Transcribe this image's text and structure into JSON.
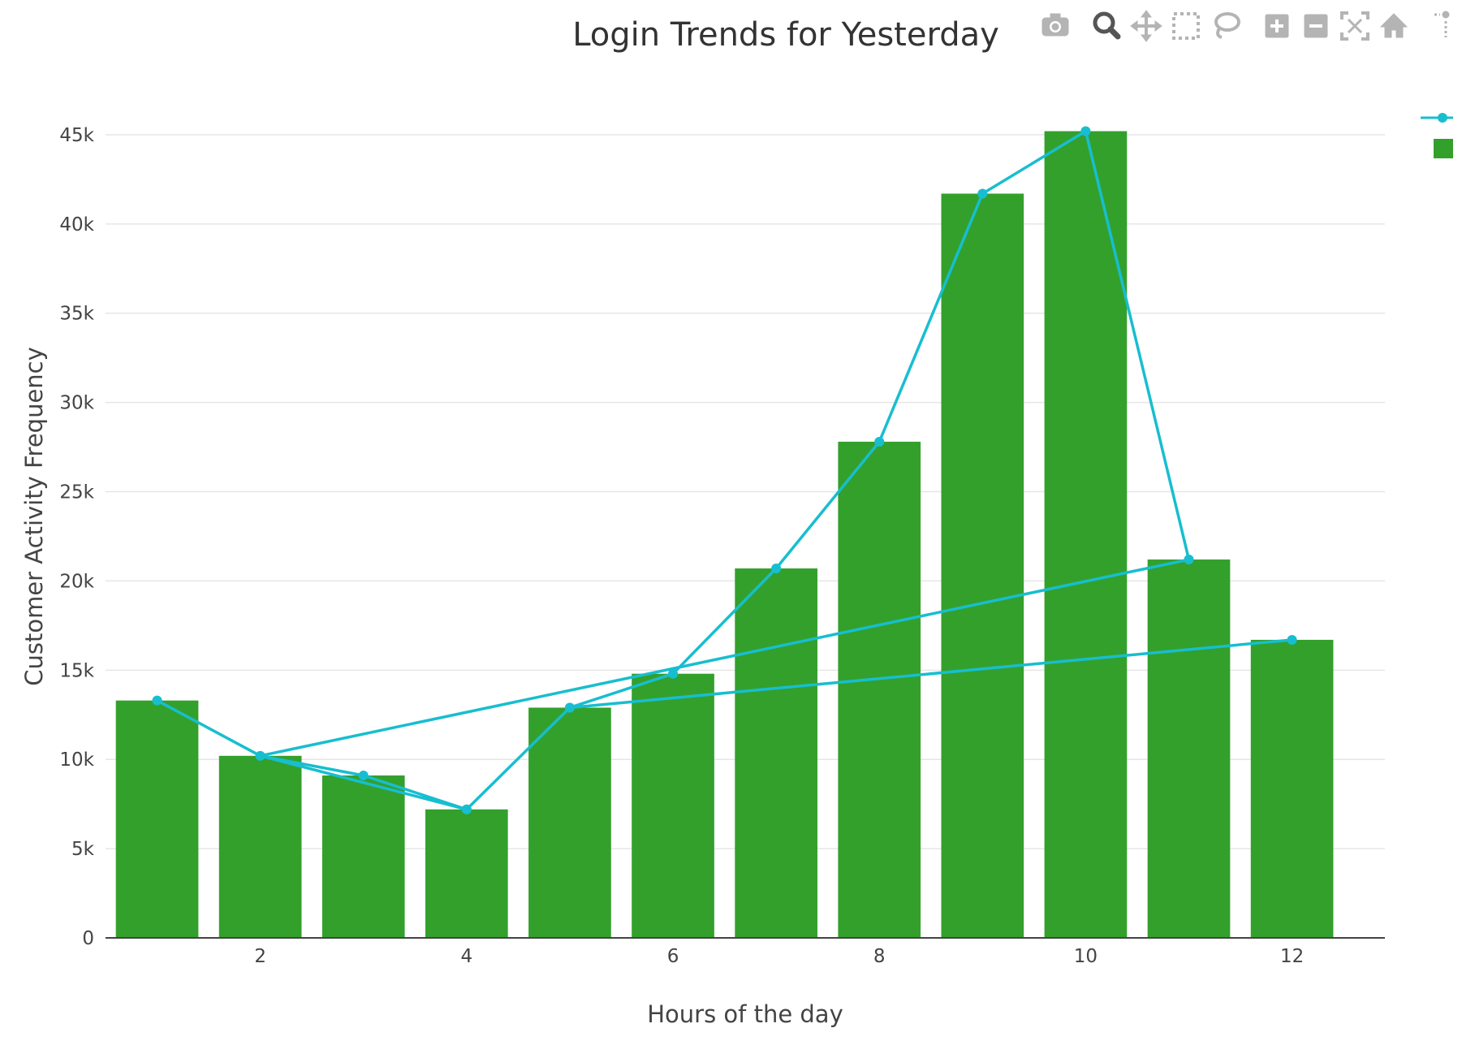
{
  "chart_data": {
    "type": "bar",
    "title": "Login Trends for Yesterday",
    "xlabel": "Hours of the day",
    "ylabel": "Customer Activity Frequency",
    "xlim": [
      0.5,
      12.9
    ],
    "ylim": [
      0,
      48000
    ],
    "x_ticks": [
      2,
      4,
      6,
      8,
      10,
      12
    ],
    "y_ticks": [
      0,
      5000,
      10000,
      15000,
      20000,
      25000,
      30000,
      35000,
      40000,
      45000
    ],
    "y_tick_labels": [
      "0",
      "5k",
      "10k",
      "15k",
      "20k",
      "25k",
      "30k",
      "35k",
      "40k",
      "45k"
    ],
    "grid": true,
    "legend_position": "top-right",
    "series": [
      {
        "kind": "bar",
        "color": "#33a02c",
        "x": [
          1,
          2,
          3,
          4,
          5,
          6,
          7,
          8,
          9,
          10,
          11,
          12
        ],
        "values": [
          13300,
          10200,
          9100,
          7200,
          12900,
          14800,
          20700,
          27800,
          41700,
          45200,
          21200,
          16700
        ]
      },
      {
        "kind": "line+markers",
        "color": "#17becf",
        "x": [
          1,
          2,
          3,
          4,
          5,
          6,
          7,
          8,
          9,
          10,
          11,
          2,
          4,
          5,
          12
        ],
        "values": [
          13300,
          10200,
          9100,
          7200,
          12900,
          14800,
          20700,
          27800,
          41700,
          45200,
          21200,
          10200,
          7200,
          12900,
          16700
        ]
      }
    ]
  },
  "modebar": {
    "buttons": [
      {
        "icon": "camera-icon",
        "active": false
      },
      {
        "icon": "zoom-icon",
        "active": true
      },
      {
        "icon": "pan-icon",
        "active": false
      },
      {
        "icon": "box-select-icon",
        "active": false
      },
      {
        "icon": "lasso-select-icon",
        "active": false
      },
      {
        "icon": "zoom-in-icon",
        "active": false
      },
      {
        "icon": "zoom-out-icon",
        "active": false
      },
      {
        "icon": "autoscale-icon",
        "active": false
      },
      {
        "icon": "reset-axes-icon",
        "active": false
      },
      {
        "icon": "spike-lines-icon",
        "active": false
      }
    ]
  }
}
